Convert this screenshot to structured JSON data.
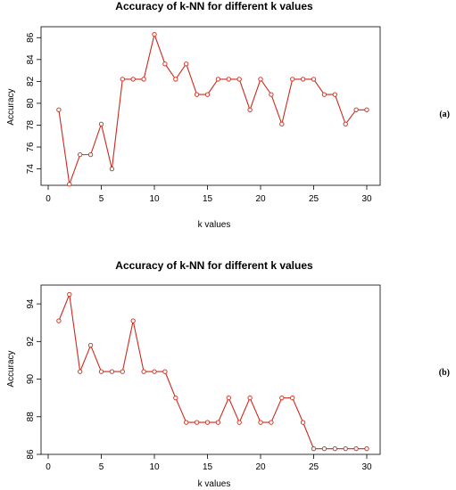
{
  "chart_data": [
    {
      "type": "line",
      "title": "Accuracy of k-NN for different k values",
      "xlabel": "k values",
      "ylabel": "Accuracy",
      "panel_label": "(a)",
      "xlim": [
        0,
        30
      ],
      "ylim": [
        72.5,
        87
      ],
      "xticks": [
        0,
        5,
        10,
        15,
        20,
        25,
        30
      ],
      "yticks": [
        74,
        76,
        78,
        80,
        82,
        84,
        86
      ],
      "grid": false,
      "line_color": "#cc2a1e",
      "series": [
        {
          "x": [
            1,
            2,
            3,
            4,
            5,
            6,
            7,
            8,
            9,
            10,
            11,
            12,
            13,
            14,
            15,
            16,
            17,
            18,
            19,
            20,
            21,
            22,
            23,
            24,
            25,
            26,
            27,
            28,
            29,
            30
          ],
          "values": [
            79.4,
            72.6,
            75.3,
            75.3,
            78.1,
            74.0,
            82.2,
            82.2,
            82.2,
            86.3,
            83.6,
            82.2,
            83.6,
            80.8,
            80.8,
            82.2,
            82.2,
            82.2,
            79.4,
            82.2,
            80.8,
            78.1,
            82.2,
            82.2,
            82.2,
            80.8,
            80.8,
            78.1,
            79.4,
            79.4
          ]
        }
      ]
    },
    {
      "type": "line",
      "title": "Accuracy of k-NN for different k values",
      "xlabel": "k values",
      "ylabel": "Accuracy",
      "panel_label": "(b)",
      "xlim": [
        0,
        30
      ],
      "ylim": [
        86,
        95
      ],
      "xticks": [
        0,
        5,
        10,
        15,
        20,
        25,
        30
      ],
      "yticks": [
        86,
        88,
        90,
        92,
        94
      ],
      "grid": false,
      "line_color": "#cc2a1e",
      "series": [
        {
          "x": [
            1,
            2,
            3,
            4,
            5,
            6,
            7,
            8,
            9,
            10,
            11,
            12,
            13,
            14,
            15,
            16,
            17,
            18,
            19,
            20,
            21,
            22,
            23,
            24,
            25,
            26,
            27,
            28,
            29,
            30
          ],
          "values": [
            93.1,
            94.5,
            90.4,
            91.8,
            90.4,
            90.4,
            90.4,
            93.1,
            90.4,
            90.4,
            90.4,
            89.0,
            87.7,
            87.7,
            87.7,
            87.7,
            89.0,
            87.7,
            89.0,
            87.7,
            87.7,
            89.0,
            89.0,
            87.7,
            86.3,
            86.3,
            86.3,
            86.3,
            86.3,
            86.3
          ]
        }
      ]
    }
  ]
}
